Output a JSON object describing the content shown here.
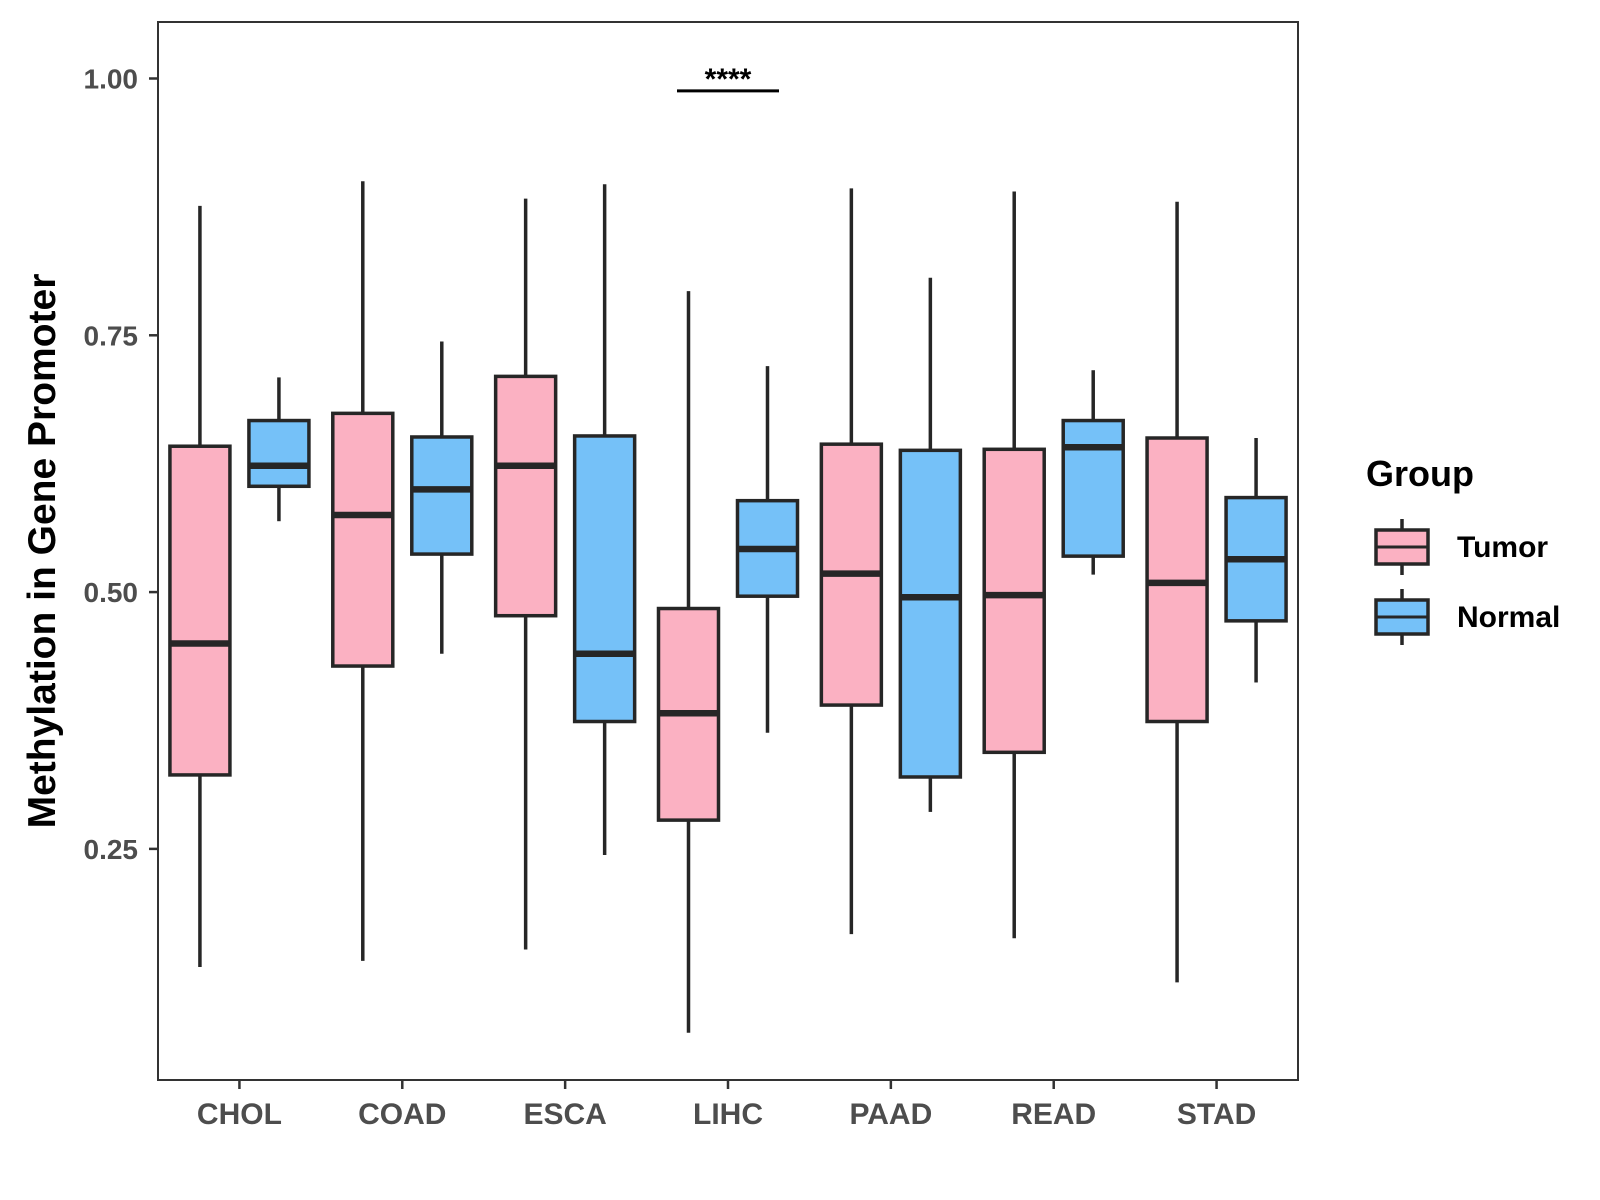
{
  "chart_data": {
    "type": "boxplot",
    "title": "",
    "xlabel": "",
    "ylabel": "Methylation in Gene Promoter",
    "ylim": [
      0.025,
      1.055
    ],
    "yticks": [
      0.25,
      0.5,
      0.75,
      1.0
    ],
    "ytick_labels": [
      "0.25",
      "0.50",
      "0.75",
      "1.00"
    ],
    "categories": [
      "CHOL",
      "COAD",
      "ESCA",
      "LIHC",
      "PAAD",
      "READ",
      "STAD"
    ],
    "grid": false,
    "legend": {
      "title": "Group",
      "position": "right",
      "entries": [
        {
          "name": "Tumor",
          "color": "#fbb1c2"
        },
        {
          "name": "Normal",
          "color": "#75c1f8"
        }
      ]
    },
    "series": [
      {
        "name": "Tumor",
        "color": "#fbb1c2",
        "boxes": [
          {
            "category": "CHOL",
            "whisker_low": 0.135,
            "q1": 0.322,
            "median": 0.45,
            "q3": 0.642,
            "whisker_high": 0.876
          },
          {
            "category": "COAD",
            "whisker_low": 0.141,
            "q1": 0.428,
            "median": 0.575,
            "q3": 0.674,
            "whisker_high": 0.9
          },
          {
            "category": "ESCA",
            "whisker_low": 0.152,
            "q1": 0.477,
            "median": 0.623,
            "q3": 0.71,
            "whisker_high": 0.883
          },
          {
            "category": "LIHC",
            "whisker_low": 0.071,
            "q1": 0.278,
            "median": 0.382,
            "q3": 0.484,
            "whisker_high": 0.793
          },
          {
            "category": "PAAD",
            "whisker_low": 0.167,
            "q1": 0.39,
            "median": 0.518,
            "q3": 0.644,
            "whisker_high": 0.893
          },
          {
            "category": "READ",
            "whisker_low": 0.163,
            "q1": 0.344,
            "median": 0.497,
            "q3": 0.639,
            "whisker_high": 0.89
          },
          {
            "category": "STAD",
            "whisker_low": 0.12,
            "q1": 0.374,
            "median": 0.509,
            "q3": 0.65,
            "whisker_high": 0.88
          }
        ]
      },
      {
        "name": "Normal",
        "color": "#75c1f8",
        "boxes": [
          {
            "category": "CHOL",
            "whisker_low": 0.569,
            "q1": 0.603,
            "median": 0.623,
            "q3": 0.667,
            "whisker_high": 0.709
          },
          {
            "category": "COAD",
            "whisker_low": 0.44,
            "q1": 0.537,
            "median": 0.6,
            "q3": 0.651,
            "whisker_high": 0.744
          },
          {
            "category": "ESCA",
            "whisker_low": 0.244,
            "q1": 0.374,
            "median": 0.44,
            "q3": 0.652,
            "whisker_high": 0.897
          },
          {
            "category": "LIHC",
            "whisker_low": 0.363,
            "q1": 0.496,
            "median": 0.542,
            "q3": 0.589,
            "whisker_high": 0.72
          },
          {
            "category": "PAAD",
            "whisker_low": 0.286,
            "q1": 0.32,
            "median": 0.495,
            "q3": 0.638,
            "whisker_high": 0.806
          },
          {
            "category": "READ",
            "whisker_low": 0.517,
            "q1": 0.535,
            "median": 0.641,
            "q3": 0.667,
            "whisker_high": 0.716
          },
          {
            "category": "STAD",
            "whisker_low": 0.412,
            "q1": 0.472,
            "median": 0.532,
            "q3": 0.592,
            "whisker_high": 0.65
          }
        ]
      }
    ],
    "annotations": [
      {
        "category": "LIHC",
        "text": "****",
        "y": 0.988
      }
    ]
  },
  "colors": {
    "tumor": "#fbb1c2",
    "normal": "#75c1f8",
    "outline": "#262626",
    "axis_text": "#4d4d4d"
  }
}
